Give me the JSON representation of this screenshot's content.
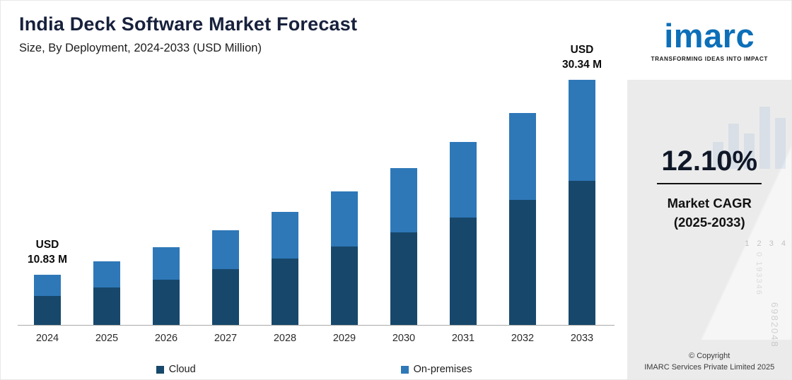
{
  "header": {
    "title": "India Deck Software Market Forecast",
    "subtitle": "Size, By Deployment, 2024-2033 (USD Million)"
  },
  "chart_data": {
    "type": "bar",
    "stacked": true,
    "title": "India Deck Software Market Forecast",
    "subtitle": "Size, By Deployment, 2024-2033 (USD Million)",
    "unit": "USD Million",
    "categories": [
      "2024",
      "2025",
      "2026",
      "2027",
      "2028",
      "2029",
      "2030",
      "2031",
      "2032",
      "2033"
    ],
    "series": [
      {
        "name": "Cloud",
        "color": "#17486B",
        "values": [
          6.39,
          7.16,
          8.03,
          9.0,
          10.09,
          11.31,
          12.68,
          14.21,
          15.94,
          17.9
        ]
      },
      {
        "name": "On-premises",
        "color": "#2E78B8",
        "values": [
          4.44,
          4.98,
          5.58,
          6.26,
          7.01,
          7.86,
          8.81,
          9.88,
          11.07,
          12.44
        ]
      }
    ],
    "totals": [
      10.83,
      12.14,
      13.61,
      15.26,
      17.1,
      19.17,
      21.49,
      24.09,
      27.01,
      30.34
    ],
    "annotations": [
      {
        "index": 0,
        "lines": [
          "USD",
          "10.83 M"
        ]
      },
      {
        "index": 9,
        "lines": [
          "USD",
          "30.34 M"
        ]
      }
    ],
    "xlabel": "",
    "ylabel": "",
    "grid": false,
    "legend_position": "bottom"
  },
  "legend": {
    "items": [
      {
        "label": "Cloud",
        "color": "#17486B"
      },
      {
        "label": "On-premises",
        "color": "#2E78B8"
      }
    ]
  },
  "brand": {
    "logo_text": "imarc",
    "tagline": "TRANSFORMING IDEAS INTO IMPACT",
    "cagr_value": "12.10%",
    "cagr_label_line1": "Market CAGR",
    "cagr_label_line2": "(2025-2033)",
    "copyright_line1": "© Copyright",
    "copyright_line2": "IMARC Services Private Limited 2025"
  },
  "watermarks": [
    "6982048",
    "0 193346",
    "1 2 3 4"
  ]
}
